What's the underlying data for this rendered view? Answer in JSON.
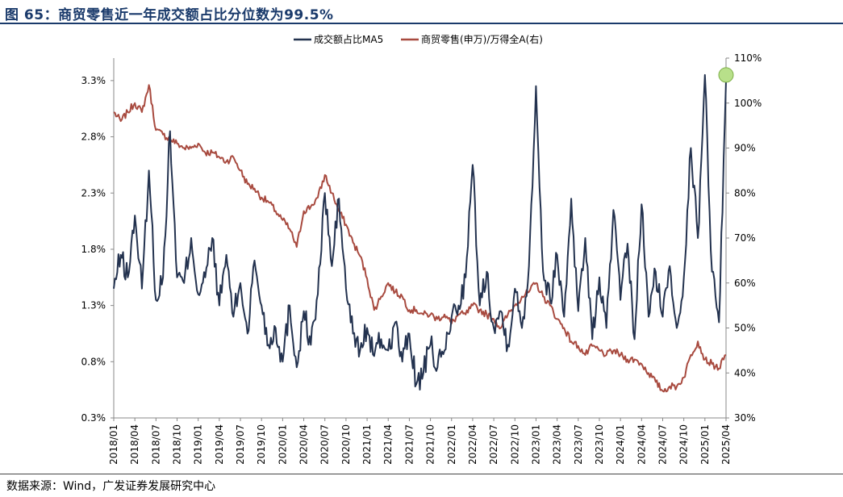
{
  "title": "图 65：商贸零售近一年成交额占比分位数为99.5%",
  "source": "数据来源：Wind，广发证券发展研究中心",
  "colors": {
    "series1": "#23324f",
    "series2": "#a84a3f",
    "highlight": "#b8e08a",
    "title": "#1a3a6b"
  },
  "chart_data": {
    "type": "line",
    "legend_position": "top",
    "grid": false,
    "x_ticks": [
      "2018/01",
      "2018/04",
      "2018/07",
      "2018/10",
      "2019/01",
      "2019/04",
      "2019/07",
      "2019/10",
      "2020/01",
      "2020/04",
      "2020/07",
      "2020/10",
      "2021/01",
      "2021/04",
      "2021/07",
      "2021/10",
      "2022/01",
      "2022/04",
      "2022/07",
      "2022/10",
      "2023/01",
      "2023/04",
      "2023/07",
      "2023/10",
      "2024/01",
      "2024/04",
      "2024/07",
      "2024/10",
      "2025/01",
      "2025/04"
    ],
    "y_left": {
      "min": 0.3,
      "max": 3.5,
      "ticks": [
        "0.3%",
        "0.8%",
        "1.3%",
        "1.8%",
        "2.3%",
        "2.8%",
        "3.3%"
      ],
      "tick_values": [
        0.3,
        0.8,
        1.3,
        1.8,
        2.3,
        2.8,
        3.3
      ]
    },
    "y_right": {
      "min": 30,
      "max": 110,
      "ticks": [
        "30%",
        "40%",
        "50%",
        "60%",
        "70%",
        "80%",
        "90%",
        "100%",
        "110%"
      ],
      "tick_values": [
        30,
        40,
        50,
        60,
        70,
        80,
        90,
        100,
        110
      ]
    },
    "series": [
      {
        "name": "成交额占比MA5",
        "axis": "left",
        "color": "#23324f",
        "points": [
          [
            "2018/01",
            1.45
          ],
          [
            "2018/02",
            1.75
          ],
          [
            "2018/03",
            1.55
          ],
          [
            "2018/04",
            2.1
          ],
          [
            "2018/05",
            1.45
          ],
          [
            "2018/06",
            2.5
          ],
          [
            "2018/07",
            1.35
          ],
          [
            "2018/08",
            1.55
          ],
          [
            "2018/09",
            2.85
          ],
          [
            "2018/10",
            1.55
          ],
          [
            "2018/11",
            1.5
          ],
          [
            "2018/12",
            1.9
          ],
          [
            "2019/01",
            1.4
          ],
          [
            "2019/02",
            1.55
          ],
          [
            "2019/03",
            1.9
          ],
          [
            "2019/04",
            1.3
          ],
          [
            "2019/05",
            1.75
          ],
          [
            "2019/06",
            1.2
          ],
          [
            "2019/07",
            1.5
          ],
          [
            "2019/08",
            1.05
          ],
          [
            "2019/09",
            1.7
          ],
          [
            "2019/10",
            1.3
          ],
          [
            "2019/11",
            0.95
          ],
          [
            "2019/12",
            1.1
          ],
          [
            "2020/01",
            0.8
          ],
          [
            "2020/02",
            1.3
          ],
          [
            "2020/03",
            0.75
          ],
          [
            "2020/04",
            1.25
          ],
          [
            "2020/05",
            0.95
          ],
          [
            "2020/06",
            1.4
          ],
          [
            "2020/07",
            2.3
          ],
          [
            "2020/08",
            1.65
          ],
          [
            "2020/09",
            2.25
          ],
          [
            "2020/10",
            1.45
          ],
          [
            "2020/11",
            1.05
          ],
          [
            "2020/12",
            0.9
          ],
          [
            "2021/01",
            1.1
          ],
          [
            "2021/02",
            0.85
          ],
          [
            "2021/03",
            1.0
          ],
          [
            "2021/04",
            0.9
          ],
          [
            "2021/05",
            1.15
          ],
          [
            "2021/06",
            0.8
          ],
          [
            "2021/07",
            1.05
          ],
          [
            "2021/08",
            0.6
          ],
          [
            "2021/09",
            0.7
          ],
          [
            "2021/10",
            0.95
          ],
          [
            "2021/11",
            0.75
          ],
          [
            "2021/12",
            0.9
          ],
          [
            "2022/01",
            1.2
          ],
          [
            "2022/02",
            1.3
          ],
          [
            "2022/03",
            1.55
          ],
          [
            "2022/04",
            2.55
          ],
          [
            "2022/05",
            1.3
          ],
          [
            "2022/06",
            1.6
          ],
          [
            "2022/07",
            1.1
          ],
          [
            "2022/08",
            1.25
          ],
          [
            "2022/09",
            0.95
          ],
          [
            "2022/10",
            1.45
          ],
          [
            "2022/11",
            1.1
          ],
          [
            "2022/12",
            1.65
          ],
          [
            "2023/01",
            3.25
          ],
          [
            "2023/02",
            1.6
          ],
          [
            "2023/03",
            1.35
          ],
          [
            "2023/04",
            1.75
          ],
          [
            "2023/05",
            1.2
          ],
          [
            "2023/06",
            2.25
          ],
          [
            "2023/07",
            1.25
          ],
          [
            "2023/08",
            1.9
          ],
          [
            "2023/09",
            1.0
          ],
          [
            "2023/10",
            1.55
          ],
          [
            "2023/11",
            1.1
          ],
          [
            "2023/12",
            2.15
          ],
          [
            "2024/01",
            1.35
          ],
          [
            "2024/02",
            1.85
          ],
          [
            "2024/03",
            1.0
          ],
          [
            "2024/04",
            2.2
          ],
          [
            "2024/05",
            1.2
          ],
          [
            "2024/06",
            1.6
          ],
          [
            "2024/07",
            1.2
          ],
          [
            "2024/08",
            1.65
          ],
          [
            "2024/09",
            1.1
          ],
          [
            "2024/10",
            1.55
          ],
          [
            "2024/11",
            2.7
          ],
          [
            "2024/12",
            1.9
          ],
          [
            "2025/01",
            3.35
          ],
          [
            "2025/02",
            1.6
          ],
          [
            "2025/03",
            1.15
          ],
          [
            "2025/04",
            3.3
          ]
        ]
      },
      {
        "name": "商贸零售(申万)/万得全A(右)",
        "axis": "right",
        "color": "#a84a3f",
        "points": [
          [
            "2018/01",
            98
          ],
          [
            "2018/02",
            96
          ],
          [
            "2018/03",
            98
          ],
          [
            "2018/04",
            100
          ],
          [
            "2018/05",
            98
          ],
          [
            "2018/06",
            104
          ],
          [
            "2018/07",
            94
          ],
          [
            "2018/08",
            93
          ],
          [
            "2018/09",
            92
          ],
          [
            "2018/10",
            91
          ],
          [
            "2018/11",
            90
          ],
          [
            "2018/12",
            90
          ],
          [
            "2019/01",
            91
          ],
          [
            "2019/02",
            89
          ],
          [
            "2019/03",
            89
          ],
          [
            "2019/04",
            88
          ],
          [
            "2019/05",
            87
          ],
          [
            "2019/06",
            88
          ],
          [
            "2019/07",
            85
          ],
          [
            "2019/08",
            82
          ],
          [
            "2019/09",
            81
          ],
          [
            "2019/10",
            79
          ],
          [
            "2019/11",
            78
          ],
          [
            "2019/12",
            76
          ],
          [
            "2020/01",
            74
          ],
          [
            "2020/02",
            72
          ],
          [
            "2020/03",
            68
          ],
          [
            "2020/04",
            76
          ],
          [
            "2020/05",
            77
          ],
          [
            "2020/06",
            79
          ],
          [
            "2020/07",
            84
          ],
          [
            "2020/08",
            80
          ],
          [
            "2020/09",
            76
          ],
          [
            "2020/10",
            73
          ],
          [
            "2020/11",
            69
          ],
          [
            "2020/12",
            66
          ],
          [
            "2021/01",
            61
          ],
          [
            "2021/02",
            54
          ],
          [
            "2021/03",
            57
          ],
          [
            "2021/04",
            60
          ],
          [
            "2021/05",
            58
          ],
          [
            "2021/06",
            57
          ],
          [
            "2021/07",
            54
          ],
          [
            "2021/08",
            54
          ],
          [
            "2021/09",
            53
          ],
          [
            "2021/10",
            53
          ],
          [
            "2021/11",
            52
          ],
          [
            "2021/12",
            53
          ],
          [
            "2022/01",
            51
          ],
          [
            "2022/02",
            53
          ],
          [
            "2022/03",
            53
          ],
          [
            "2022/04",
            55
          ],
          [
            "2022/05",
            54
          ],
          [
            "2022/06",
            53
          ],
          [
            "2022/07",
            52
          ],
          [
            "2022/08",
            50
          ],
          [
            "2022/09",
            53
          ],
          [
            "2022/10",
            55
          ],
          [
            "2022/11",
            57
          ],
          [
            "2022/12",
            58
          ],
          [
            "2023/01",
            60
          ],
          [
            "2023/02",
            57
          ],
          [
            "2023/03",
            55
          ],
          [
            "2023/04",
            52
          ],
          [
            "2023/05",
            50
          ],
          [
            "2023/06",
            47
          ],
          [
            "2023/07",
            46
          ],
          [
            "2023/08",
            44
          ],
          [
            "2023/09",
            46
          ],
          [
            "2023/10",
            45
          ],
          [
            "2023/11",
            44
          ],
          [
            "2023/12",
            45
          ],
          [
            "2024/01",
            44
          ],
          [
            "2024/02",
            43
          ],
          [
            "2024/03",
            43
          ],
          [
            "2024/04",
            42
          ],
          [
            "2024/05",
            40
          ],
          [
            "2024/06",
            38
          ],
          [
            "2024/07",
            36
          ],
          [
            "2024/08",
            37
          ],
          [
            "2024/09",
            37
          ],
          [
            "2024/10",
            39
          ],
          [
            "2024/11",
            44
          ],
          [
            "2024/12",
            47
          ],
          [
            "2025/01",
            43
          ],
          [
            "2025/02",
            42
          ],
          [
            "2025/03",
            41
          ],
          [
            "2025/04",
            44
          ]
        ]
      }
    ],
    "annotation": {
      "type": "circle",
      "series": "成交额占比MA5",
      "x": "2025/04",
      "y": 3.35
    }
  }
}
